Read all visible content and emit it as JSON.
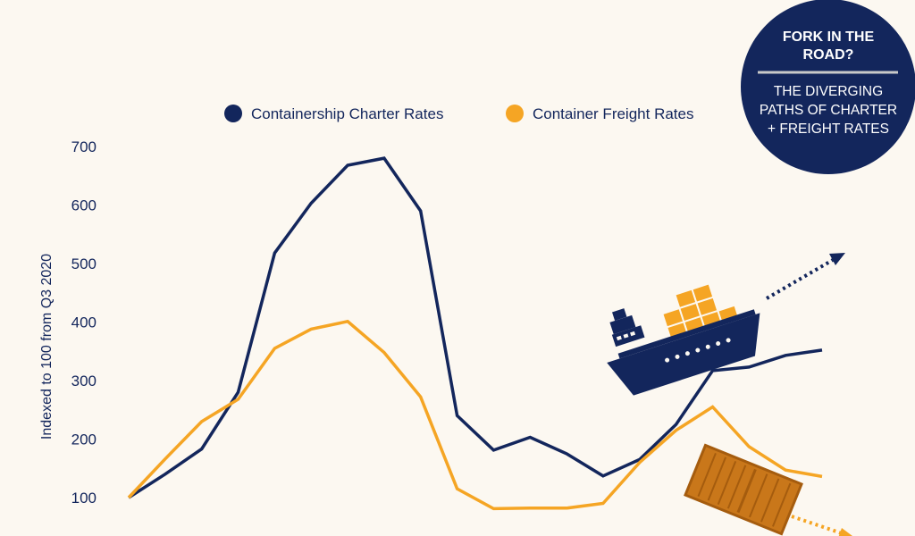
{
  "chart_data": {
    "type": "line",
    "ylabel": "Indexed to 100 from Q3 2020",
    "yticks": [
      100,
      200,
      300,
      400,
      500,
      600,
      700
    ],
    "legend_position": "top",
    "series": [
      {
        "name": "Containership Charter Rates",
        "color": "#13265c",
        "values": [
          100,
          140,
          183,
          280,
          518,
          603,
          668,
          680,
          590,
          240,
          181,
          203,
          175,
          137,
          165,
          225,
          317,
          323,
          343,
          352
        ]
      },
      {
        "name": "Container Freight Rates",
        "color": "#f5a524",
        "values": [
          100,
          166,
          230,
          268,
          355,
          388,
          401,
          348,
          272,
          115,
          81,
          82,
          82,
          90,
          160,
          215,
          255,
          187,
          147,
          136
        ]
      }
    ]
  },
  "badge": {
    "title_line1": "FORK IN THE",
    "title_line2": "ROAD?",
    "sub_line1": "THE DIVERGING",
    "sub_line2": "PATHS OF CHARTER",
    "sub_line3": "+ FREIGHT RATES",
    "color": "#13265c"
  },
  "icons": [
    "ship-icon",
    "shipping-container-icon",
    "up-arrow-icon",
    "down-arrow-icon"
  ]
}
